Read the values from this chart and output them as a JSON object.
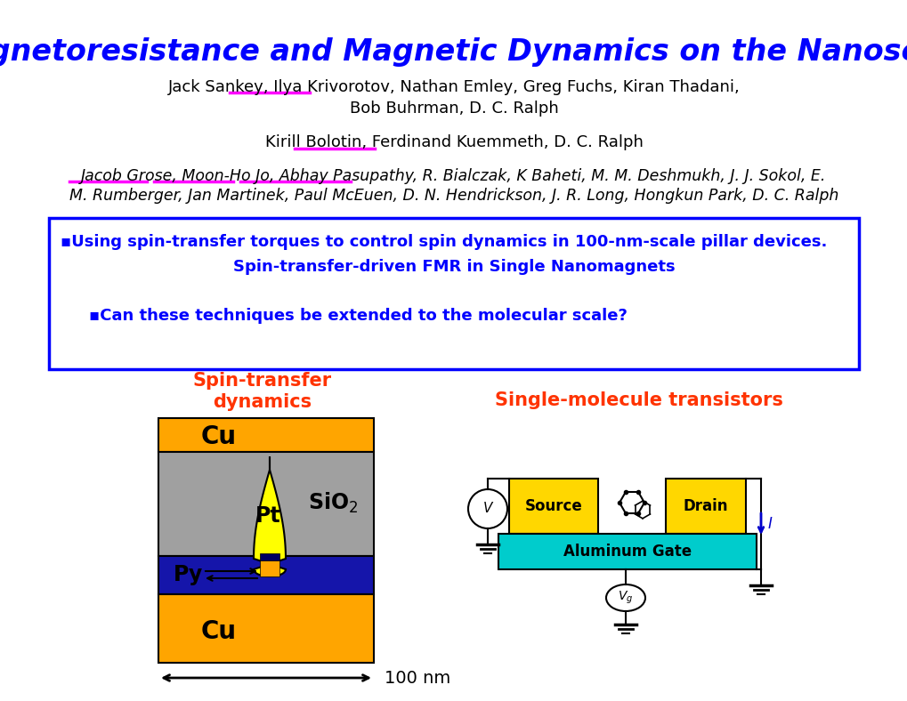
{
  "title": "Magnetoresistance and Magnetic Dynamics on the Nanoscale",
  "title_color": "#0000FF",
  "title_fontsize": 24,
  "authors1_line1": "Jack Sankey, Ilya Krivorotov, Nathan Emley, Greg Fuchs, Kiran Thadani,",
  "authors1_line2": "Bob Buhrman, D. C. Ralph",
  "authors2": "Kirill Bolotin, Ferdinand Kuemmeth, D. C. Ralph",
  "authors3_line1": "Jacob Grose, Moon-Ho Jo, Abhay Pasupathy, R. Bialczak, K Baheti, M. M. Deshmukh, J. J. Sokol, E.",
  "authors3_line2": "M. Rumberger, Jan Martinek, Paul McEuen, D. N. Hendrickson, J. R. Long, Hongkun Park, D. C. Ralph",
  "box_text_bullet1": "▪Using spin-transfer torques to control spin dynamics in 100-nm-scale pillar devices.",
  "box_text_line2": "Spin-transfer-driven FMR in Single Nanomagnets",
  "box_text_bullet2": "▪Can these techniques be extended to the molecular scale?",
  "box_color": "#0000FF",
  "box_text_color": "#0000FF",
  "label_spin": "Spin-transfer\ndynamics",
  "label_spin_color": "#FF3300",
  "label_mol": "Single-molecule transistors",
  "label_mol_color": "#FF3300",
  "cu_color": "#FFA500",
  "gray_color": "#A0A0A0",
  "blue_color": "#1515AA",
  "yellow_color": "#FFFF00",
  "source_color": "#FFD700",
  "drain_color": "#FFD700",
  "gate_color": "#00CCCC",
  "background": "#FFFFFF",
  "magenta": "#FF00FF",
  "black": "#000000"
}
